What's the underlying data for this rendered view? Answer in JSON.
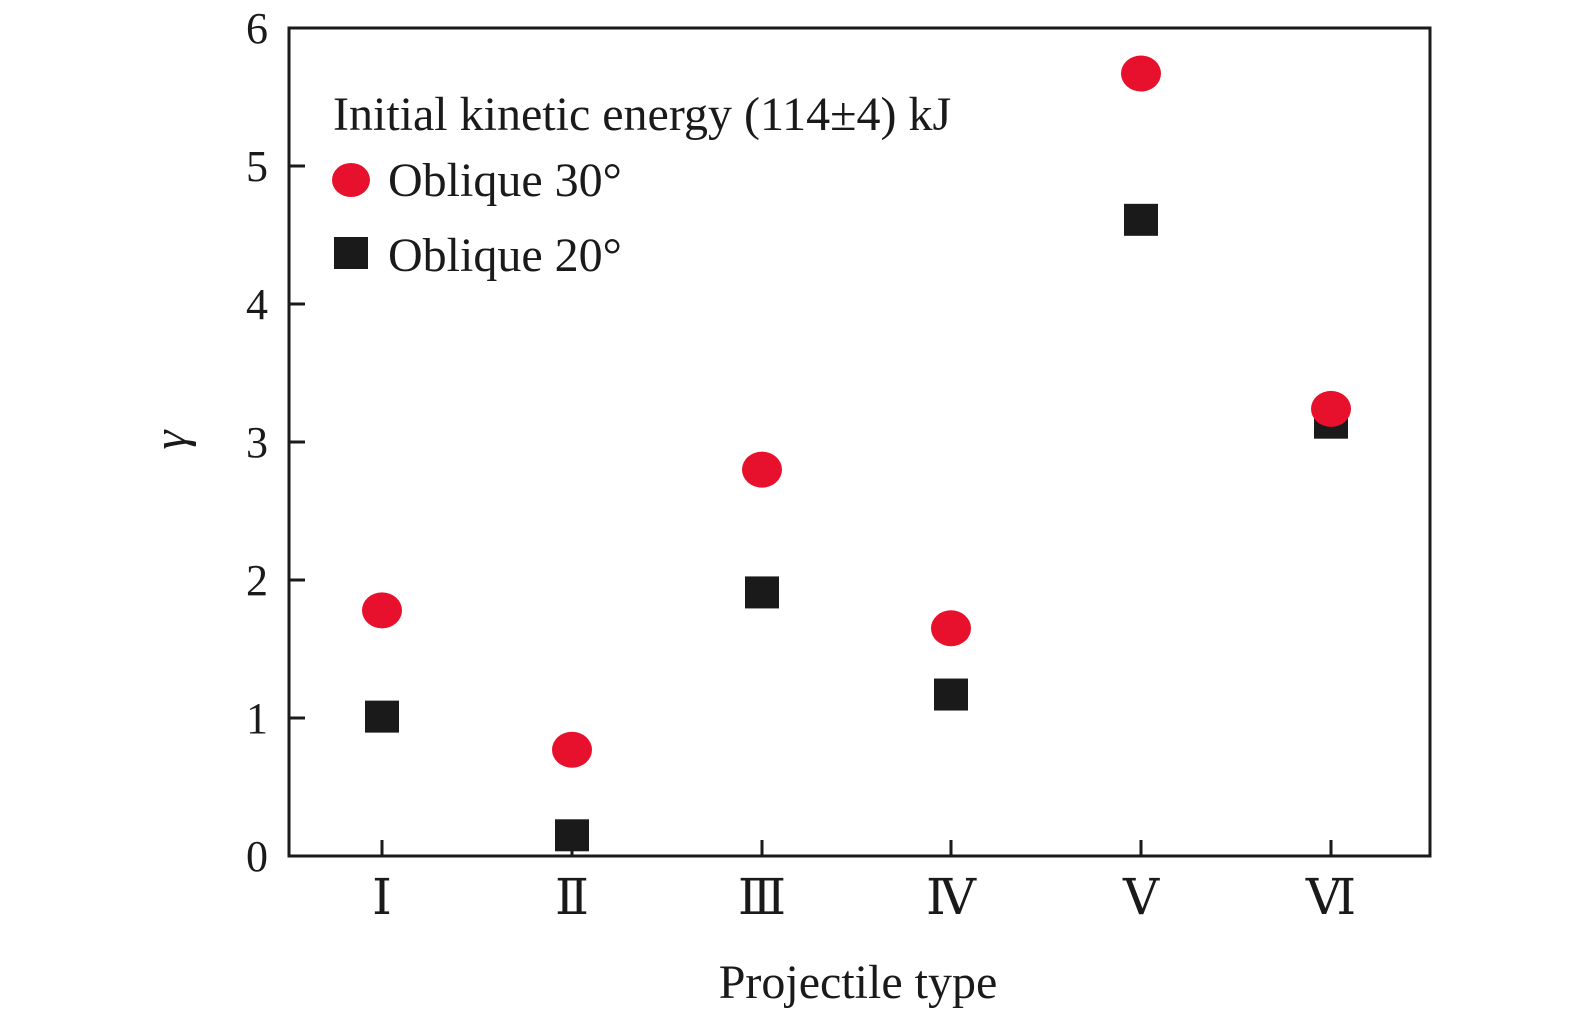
{
  "chart_data": {
    "type": "scatter",
    "title": "",
    "xlabel": "Projectile type",
    "ylabel": "γ",
    "categories": [
      "Ⅰ",
      "Ⅱ",
      "Ⅲ",
      "Ⅳ",
      "Ⅴ",
      "Ⅵ"
    ],
    "ylim": [
      0,
      6
    ],
    "yticks": [
      "0",
      "1",
      "2",
      "3",
      "4",
      "5",
      "6"
    ],
    "grid": false,
    "legend_title": "Initial kinetic energy (114±4) kJ",
    "legend_position": "top-left",
    "series": [
      {
        "name": "Oblique 30°",
        "marker": "circle",
        "color": "#e8112d",
        "values": [
          1.78,
          0.77,
          2.8,
          1.65,
          5.67,
          3.24
        ]
      },
      {
        "name": "Oblique 20°",
        "marker": "square",
        "color": "#1a1a1a",
        "values": [
          1.01,
          0.15,
          1.91,
          1.17,
          4.61,
          3.14
        ]
      }
    ]
  }
}
